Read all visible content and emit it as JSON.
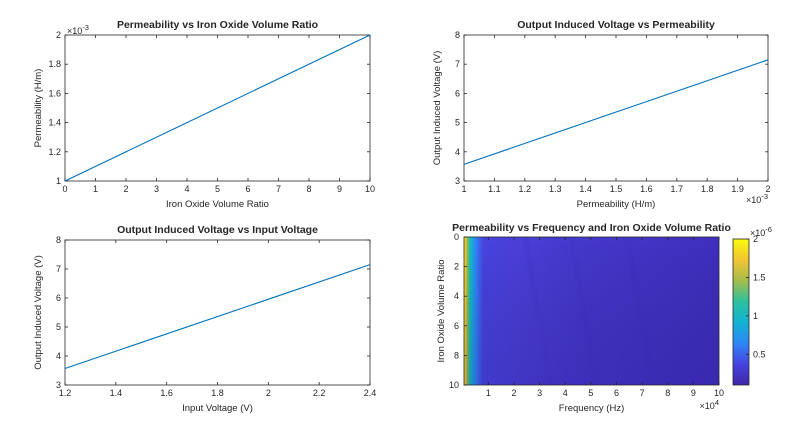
{
  "chart_data": [
    {
      "type": "line",
      "title": "Permeability vs Iron Oxide Volume Ratio",
      "xlabel": "Iron Oxide Volume Ratio",
      "ylabel": "Permeability (H/m)",
      "y_exponent": "×10^-3",
      "xlim": [
        0,
        10
      ],
      "ylim": [
        1,
        2
      ],
      "xticks": [
        "0",
        "1",
        "2",
        "3",
        "4",
        "5",
        "6",
        "7",
        "8",
        "9",
        "10"
      ],
      "yticks": [
        "1",
        "1.2",
        "1.4",
        "1.6",
        "1.8",
        "2"
      ],
      "x": [
        0,
        10
      ],
      "y": [
        1.0,
        2.0
      ],
      "color": "#0072BD"
    },
    {
      "type": "line",
      "title": "Output Induced Voltage vs Permeability",
      "xlabel": "Permeability (H/m)",
      "ylabel": "Output Induced Voltage (V)",
      "x_exponent": "×10^-3",
      "xlim": [
        1,
        2
      ],
      "ylim": [
        3,
        8
      ],
      "xticks": [
        "1",
        "1.1",
        "1.2",
        "1.3",
        "1.4",
        "1.5",
        "1.6",
        "1.7",
        "1.8",
        "1.9",
        "2"
      ],
      "yticks": [
        "3",
        "4",
        "5",
        "6",
        "7",
        "8"
      ],
      "x": [
        1.0,
        2.0
      ],
      "y": [
        3.57,
        7.15
      ],
      "color": "#0072BD"
    },
    {
      "type": "line",
      "title": "Output Induced Voltage vs Input Voltage",
      "xlabel": "Input Voltage (V)",
      "ylabel": "Output Induced Voltage (V)",
      "xlim": [
        1.2,
        2.4
      ],
      "ylim": [
        3,
        8
      ],
      "xticks": [
        "1.2",
        "1.4",
        "1.6",
        "1.8",
        "2",
        "2.2",
        "2.4"
      ],
      "yticks": [
        "3",
        "4",
        "5",
        "6",
        "7",
        "8"
      ],
      "x": [
        1.2,
        2.4
      ],
      "y": [
        3.57,
        7.15
      ],
      "color": "#0072BD"
    },
    {
      "type": "heatmap",
      "title": "Permeability vs Frequency and Iron Oxide Volume Ratio",
      "xlabel": "Frequency (Hz)",
      "ylabel": "Iron Oxide Volume Ratio",
      "x_exponent": "×10^4",
      "colorbar_exponent": "×10^-6",
      "xlim": [
        0,
        10
      ],
      "ylim": [
        0,
        10
      ],
      "y_reversed": true,
      "xticks": [
        "1",
        "2",
        "3",
        "4",
        "5",
        "6",
        "7",
        "8",
        "9",
        "10"
      ],
      "yticks": [
        "0",
        "2",
        "4",
        "6",
        "8",
        "10"
      ],
      "colorbar_range": [
        0.1,
        2
      ],
      "colorbar_ticks": [
        "0.5",
        "1",
        "1.5",
        "2"
      ],
      "colormap": "parula",
      "colormap_stops": [
        "#3E26A8",
        "#4743E0",
        "#2E87F7",
        "#12B2D3",
        "#2DC09E",
        "#A5BD4B",
        "#F2C433",
        "#F9FB0E"
      ]
    }
  ]
}
